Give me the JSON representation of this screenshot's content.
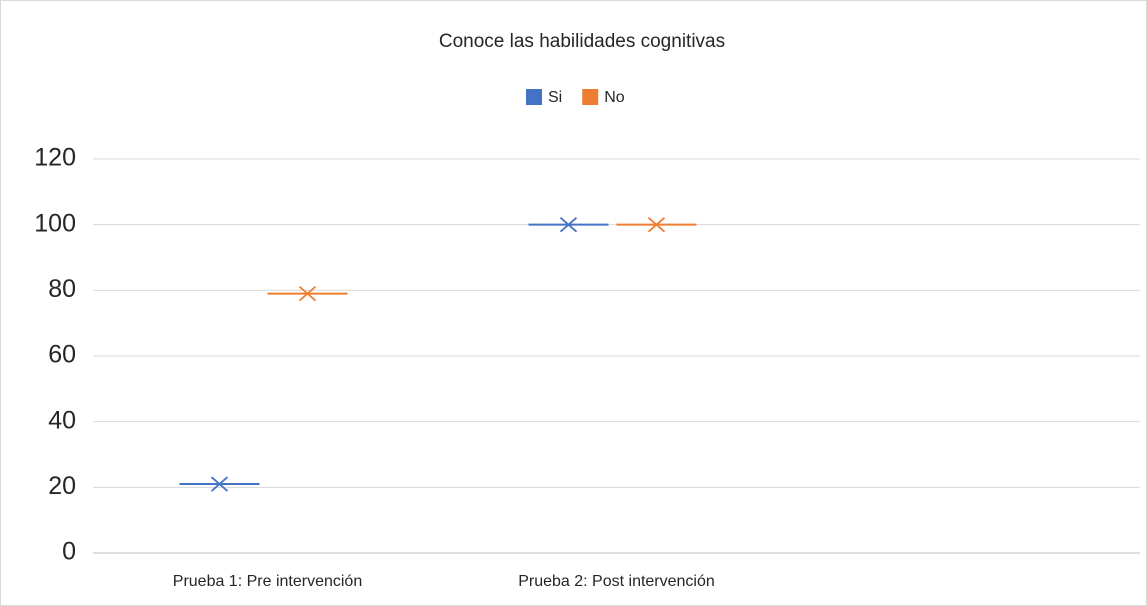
{
  "chart_data": {
    "type": "box",
    "title": "Conoce las habilidades cognitivas",
    "categories": [
      "Prueba 1: Pre intervención",
      "Prueba 2: Post intervención",
      null
    ],
    "series": [
      {
        "name": "Si",
        "color": "#4472c4",
        "values": [
          21,
          100,
          null
        ]
      },
      {
        "name": "No",
        "color": "#ed7d31",
        "values": [
          79,
          100,
          null
        ]
      }
    ],
    "ylim": [
      0,
      120
    ],
    "yticks": [
      0,
      20,
      40,
      60,
      80,
      100,
      120
    ],
    "grid": true,
    "legend": "top"
  }
}
